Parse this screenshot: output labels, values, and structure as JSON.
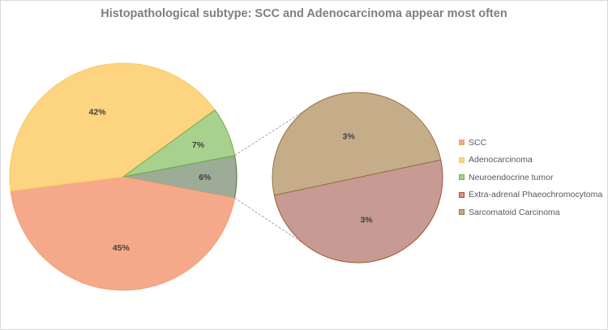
{
  "chart_data": {
    "type": "bar-of-pie",
    "title": "Histopathological subtype: SCC and Adenocarcinoma appear most often",
    "slices": [
      {
        "name": "SCC",
        "value": 45,
        "label": "45%",
        "color": "#f6a98a",
        "edge": "#f0a070",
        "group": "main"
      },
      {
        "name": "Adenocarcinoma",
        "value": 42,
        "label": "42%",
        "color": "#fdd47f",
        "edge": "#f7c96a",
        "group": "main"
      },
      {
        "name": "Neuroendocrine tumor",
        "value": 7,
        "label": "7%",
        "color": "#a9d18e",
        "edge": "#70ad47",
        "group": "main"
      },
      {
        "name": "Extra-adrenal Phaeochromocytoma",
        "value": 3,
        "label": "3%",
        "color": "#c79b94",
        "edge": "#a0552d",
        "group": "other"
      },
      {
        "name": "Sarcomatoid Carcinoma",
        "value": 3,
        "label": "3%",
        "color": "#c6ad8a",
        "edge": "#947040",
        "group": "other"
      }
    ],
    "other_label": "6%",
    "other_color": "#9cac97",
    "other_edge": "#4e7a3a",
    "legend_position": "right",
    "label_color": "#404040",
    "connector_color": "#a6a6a6"
  }
}
